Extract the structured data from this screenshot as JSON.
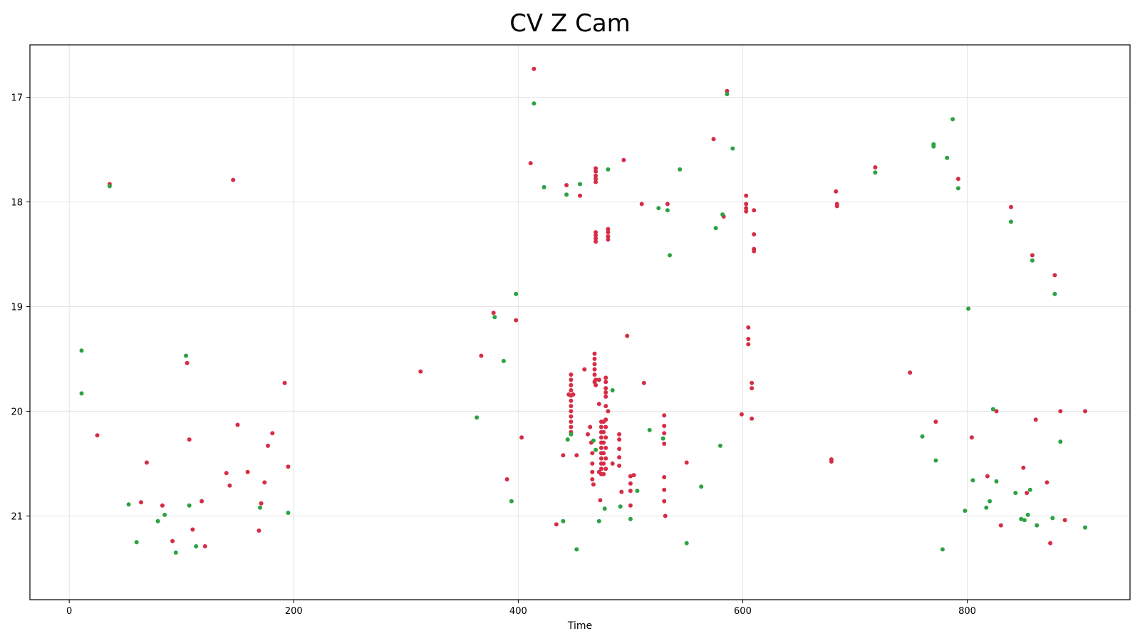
{
  "chart_data": {
    "type": "scatter",
    "title": "CV Z Cam",
    "xlabel": "Time",
    "ylabel": "",
    "xlim": [
      -35,
      945
    ],
    "ylim": [
      21.8,
      16.5
    ],
    "y_inverted": true,
    "grid": true,
    "x_ticks": [
      0,
      200,
      400,
      600,
      800
    ],
    "y_ticks": [
      17,
      18,
      19,
      20,
      21
    ],
    "series": [
      {
        "color": "#d62d46",
        "points": [
          [
            36,
            17.83
          ],
          [
            146,
            17.79
          ],
          [
            25,
            20.23
          ],
          [
            64,
            20.87
          ],
          [
            69,
            20.49
          ],
          [
            83,
            20.9
          ],
          [
            92,
            21.24
          ],
          [
            105,
            19.54
          ],
          [
            107,
            20.27
          ],
          [
            110,
            21.13
          ],
          [
            118,
            20.86
          ],
          [
            121,
            21.29
          ],
          [
            140,
            20.59
          ],
          [
            143,
            20.71
          ],
          [
            150,
            20.13
          ],
          [
            159,
            20.58
          ],
          [
            169,
            21.14
          ],
          [
            171,
            20.88
          ],
          [
            174,
            20.68
          ],
          [
            177,
            20.33
          ],
          [
            181,
            20.21
          ],
          [
            192,
            19.73
          ],
          [
            195,
            20.53
          ],
          [
            313,
            19.62
          ],
          [
            367,
            19.47
          ],
          [
            378,
            19.06
          ],
          [
            390,
            20.65
          ],
          [
            398,
            19.13
          ],
          [
            403,
            20.25
          ],
          [
            411,
            17.63
          ],
          [
            414,
            16.73
          ],
          [
            434,
            21.08
          ],
          [
            440,
            20.42
          ],
          [
            443,
            17.84
          ],
          [
            455,
            17.94
          ],
          [
            497,
            19.28
          ],
          [
            512,
            19.73
          ],
          [
            574,
            17.4
          ],
          [
            586,
            16.94
          ],
          [
            583,
            18.14
          ],
          [
            599,
            20.03
          ],
          [
            603,
            17.94
          ],
          [
            603,
            18.02
          ],
          [
            603,
            18.06
          ],
          [
            603,
            18.09
          ],
          [
            605,
            19.2
          ],
          [
            605,
            19.31
          ],
          [
            605,
            19.36
          ],
          [
            608,
            19.73
          ],
          [
            608,
            19.78
          ],
          [
            608,
            20.07
          ],
          [
            610,
            18.08
          ],
          [
            610,
            18.31
          ],
          [
            610,
            18.45
          ],
          [
            610,
            18.47
          ],
          [
            447,
            19.65
          ],
          [
            447,
            19.7
          ],
          [
            447,
            19.75
          ],
          [
            447,
            19.8
          ],
          [
            447,
            19.85
          ],
          [
            447,
            19.9
          ],
          [
            447,
            19.95
          ],
          [
            447,
            20.0
          ],
          [
            447,
            20.05
          ],
          [
            447,
            20.1
          ],
          [
            447,
            20.15
          ],
          [
            447,
            20.2
          ],
          [
            445,
            19.84
          ],
          [
            449,
            19.84
          ],
          [
            452,
            20.42
          ],
          [
            459,
            19.6
          ],
          [
            462,
            20.22
          ],
          [
            464,
            20.15
          ],
          [
            465,
            20.3
          ],
          [
            466,
            20.4
          ],
          [
            466,
            20.5
          ],
          [
            466,
            20.58
          ],
          [
            466,
            20.65
          ],
          [
            467,
            20.7
          ],
          [
            469,
            19.7
          ],
          [
            469,
            19.75
          ],
          [
            468,
            19.45
          ],
          [
            468,
            19.5
          ],
          [
            468,
            19.55
          ],
          [
            468,
            19.6
          ],
          [
            468,
            19.65
          ],
          [
            468,
            19.72
          ],
          [
            469,
            17.68
          ],
          [
            469,
            17.71
          ],
          [
            469,
            17.75
          ],
          [
            469,
            17.78
          ],
          [
            469,
            17.81
          ],
          [
            472,
            19.93
          ],
          [
            472,
            19.7
          ],
          [
            474,
            20.1
          ],
          [
            474,
            20.15
          ],
          [
            474,
            20.2
          ],
          [
            474,
            20.25
          ],
          [
            474,
            20.3
          ],
          [
            474,
            20.35
          ],
          [
            474,
            20.4
          ],
          [
            474,
            20.45
          ],
          [
            474,
            20.5
          ],
          [
            474,
            20.55
          ],
          [
            474,
            20.6
          ],
          [
            476,
            20.1
          ],
          [
            476,
            20.2
          ],
          [
            476,
            20.3
          ],
          [
            476,
            20.4
          ],
          [
            476,
            20.5
          ],
          [
            476,
            20.6
          ],
          [
            478,
            19.68
          ],
          [
            478,
            19.72
          ],
          [
            478,
            19.78
          ],
          [
            478,
            19.82
          ],
          [
            478,
            19.86
          ],
          [
            478,
            19.95
          ],
          [
            478,
            20.08
          ],
          [
            478,
            20.15
          ],
          [
            478,
            20.25
          ],
          [
            478,
            20.35
          ],
          [
            478,
            20.45
          ],
          [
            478,
            20.55
          ],
          [
            480,
            18.26
          ],
          [
            480,
            18.29
          ],
          [
            480,
            18.33
          ],
          [
            480,
            18.36
          ],
          [
            469,
            18.29
          ],
          [
            469,
            18.32
          ],
          [
            469,
            18.35
          ],
          [
            469,
            18.38
          ],
          [
            472,
            20.58
          ],
          [
            473,
            20.85
          ],
          [
            480,
            20.0
          ],
          [
            484,
            20.5
          ],
          [
            490,
            20.22
          ],
          [
            490,
            20.27
          ],
          [
            490,
            20.36
          ],
          [
            490,
            20.44
          ],
          [
            490,
            20.52
          ],
          [
            492,
            20.77
          ],
          [
            494,
            17.6
          ],
          [
            500,
            20.62
          ],
          [
            500,
            20.69
          ],
          [
            500,
            20.76
          ],
          [
            500,
            20.9
          ],
          [
            503,
            20.61
          ],
          [
            510,
            18.02
          ],
          [
            530,
            20.04
          ],
          [
            530,
            20.14
          ],
          [
            530,
            20.21
          ],
          [
            530,
            20.31
          ],
          [
            530,
            20.63
          ],
          [
            530,
            20.75
          ],
          [
            530,
            20.86
          ],
          [
            531,
            21.0
          ],
          [
            533,
            18.02
          ],
          [
            550,
            20.49
          ],
          [
            679,
            20.46
          ],
          [
            679,
            20.48
          ],
          [
            684,
            18.02
          ],
          [
            684,
            18.04
          ],
          [
            683,
            17.9
          ],
          [
            718,
            17.67
          ],
          [
            749,
            19.63
          ],
          [
            772,
            20.1
          ],
          [
            792,
            17.78
          ],
          [
            804,
            20.25
          ],
          [
            818,
            20.62
          ],
          [
            826,
            20.0
          ],
          [
            830,
            21.09
          ],
          [
            839,
            18.05
          ],
          [
            850,
            20.54
          ],
          [
            853,
            20.78
          ],
          [
            858,
            18.51
          ],
          [
            861,
            20.08
          ],
          [
            871,
            20.68
          ],
          [
            874,
            21.26
          ],
          [
            878,
            18.7
          ],
          [
            883,
            20.0
          ],
          [
            887,
            21.04
          ],
          [
            905,
            20.0
          ]
        ]
      },
      {
        "color": "#2ca242",
        "points": [
          [
            36,
            17.85
          ],
          [
            11,
            19.42
          ],
          [
            11,
            19.83
          ],
          [
            53,
            20.89
          ],
          [
            60,
            21.25
          ],
          [
            79,
            21.05
          ],
          [
            85,
            20.99
          ],
          [
            95,
            21.35
          ],
          [
            104,
            19.47
          ],
          [
            107,
            20.9
          ],
          [
            113,
            21.29
          ],
          [
            170,
            20.92
          ],
          [
            195,
            20.97
          ],
          [
            363,
            20.06
          ],
          [
            379,
            19.1
          ],
          [
            387,
            19.52
          ],
          [
            394,
            20.86
          ],
          [
            398,
            18.88
          ],
          [
            414,
            17.06
          ],
          [
            423,
            17.86
          ],
          [
            440,
            21.05
          ],
          [
            443,
            17.93
          ],
          [
            444,
            20.27
          ],
          [
            447,
            20.22
          ],
          [
            452,
            21.32
          ],
          [
            455,
            17.83
          ],
          [
            467,
            20.28
          ],
          [
            469,
            20.37
          ],
          [
            472,
            21.05
          ],
          [
            477,
            20.93
          ],
          [
            480,
            17.69
          ],
          [
            484,
            19.8
          ],
          [
            491,
            20.91
          ],
          [
            500,
            21.03
          ],
          [
            506,
            20.76
          ],
          [
            517,
            20.18
          ],
          [
            525,
            18.06
          ],
          [
            529,
            20.26
          ],
          [
            533,
            18.08
          ],
          [
            535,
            18.51
          ],
          [
            544,
            17.69
          ],
          [
            550,
            21.26
          ],
          [
            563,
            20.72
          ],
          [
            576,
            18.25
          ],
          [
            580,
            20.33
          ],
          [
            582,
            18.12
          ],
          [
            586,
            16.97
          ],
          [
            591,
            17.49
          ],
          [
            718,
            17.72
          ],
          [
            760,
            20.24
          ],
          [
            770,
            17.45
          ],
          [
            770,
            17.47
          ],
          [
            772,
            20.47
          ],
          [
            778,
            21.32
          ],
          [
            782,
            17.58
          ],
          [
            787,
            17.21
          ],
          [
            792,
            17.87
          ],
          [
            798,
            20.95
          ],
          [
            801,
            19.02
          ],
          [
            805,
            20.66
          ],
          [
            817,
            20.92
          ],
          [
            820,
            20.86
          ],
          [
            823,
            19.98
          ],
          [
            826,
            20.67
          ],
          [
            839,
            18.19
          ],
          [
            843,
            20.78
          ],
          [
            848,
            21.03
          ],
          [
            851,
            21.04
          ],
          [
            854,
            20.99
          ],
          [
            858,
            18.56
          ],
          [
            856,
            20.75
          ],
          [
            862,
            21.09
          ],
          [
            876,
            21.02
          ],
          [
            878,
            18.88
          ],
          [
            883,
            20.29
          ],
          [
            905,
            21.11
          ]
        ]
      }
    ]
  }
}
